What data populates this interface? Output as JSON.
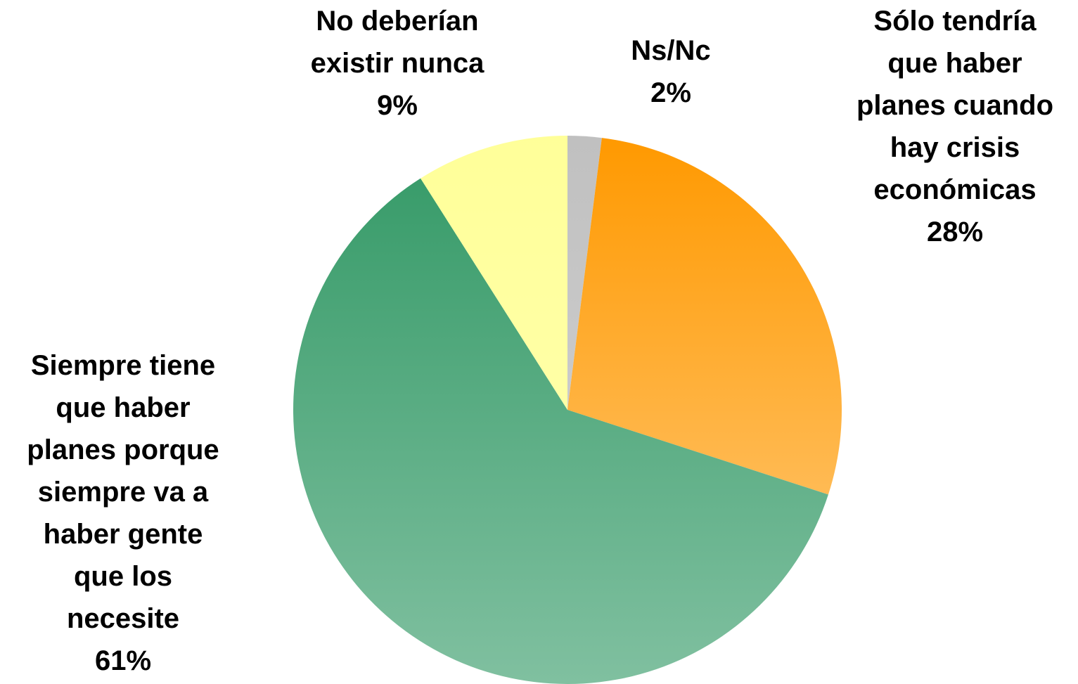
{
  "chart_data": {
    "type": "pie",
    "title": "",
    "slices": [
      {
        "label_lines": [
          "Ns/Nc"
        ],
        "percent_label": "2%",
        "value": 2,
        "color_top": "#c0c0c0",
        "color_bottom": "#d6d6d6"
      },
      {
        "label_lines": [
          "Sólo tendría",
          "que haber",
          "planes cuando",
          "hay crisis",
          "económicas"
        ],
        "percent_label": "28%",
        "value": 28,
        "color_top": "#ff9900",
        "color_bottom": "#ffcc80"
      },
      {
        "label_lines": [
          "Siempre tiene",
          "que haber",
          "planes porque",
          "siempre va a",
          "haber gente",
          "que los",
          "necesite"
        ],
        "percent_label": "61%",
        "value": 61,
        "color_top": "#339966",
        "color_bottom": "#80c0a0"
      },
      {
        "label_lines": [
          "No deberían",
          "existir nunca"
        ],
        "percent_label": "9%",
        "value": 9,
        "color_top": "#ffff99",
        "color_bottom": "#ffffb3"
      }
    ],
    "start_angle_deg": 0,
    "direction": "clockwise"
  }
}
